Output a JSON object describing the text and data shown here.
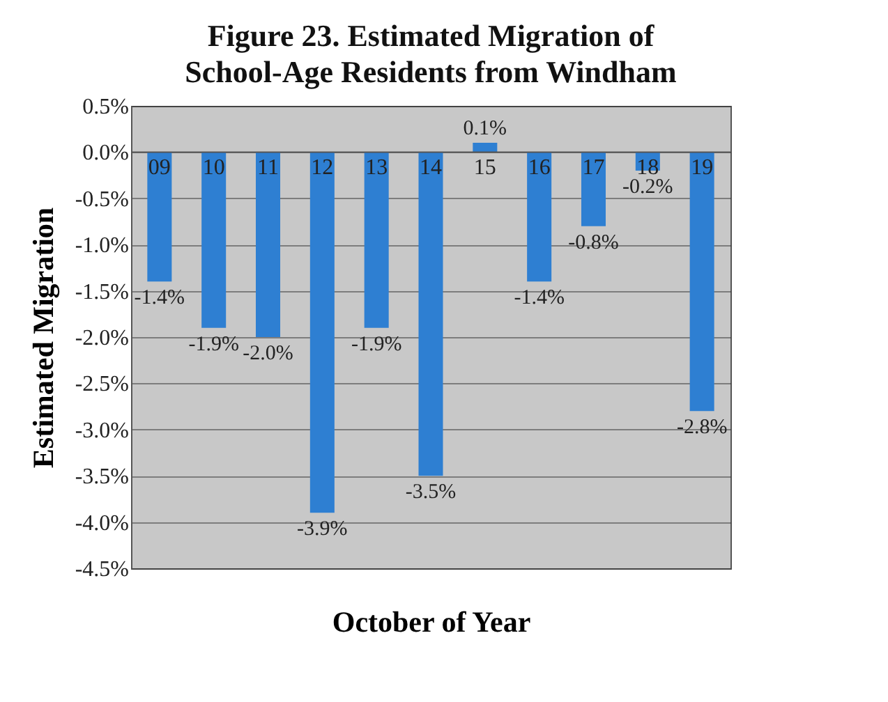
{
  "chart_data": {
    "type": "bar",
    "title": "Figure 23.  Estimated Migration of School-Age Residents from Windham",
    "xlabel": "October of Year",
    "ylabel": "Estimated Migration",
    "categories": [
      "09",
      "10",
      "11",
      "12",
      "13",
      "14",
      "15",
      "16",
      "17",
      "18",
      "19"
    ],
    "values": [
      -1.4,
      -1.9,
      -2.0,
      -3.9,
      -1.9,
      -3.5,
      0.1,
      -1.4,
      -0.8,
      -0.2,
      -2.8
    ],
    "value_labels": [
      "-1.4%",
      "-1.9%",
      "-2.0%",
      "-3.9%",
      "-1.9%",
      "-3.5%",
      "0.1%",
      "-1.4%",
      "-0.8%",
      "-0.2%",
      "-2.8%"
    ],
    "color": "#2e7fd2",
    "ylim": [
      -4.5,
      0.5
    ],
    "yticks": [
      {
        "value": 0.5,
        "label": "0.5%"
      },
      {
        "value": 0.0,
        "label": "0.0%"
      },
      {
        "value": -0.5,
        "label": "-0.5%"
      },
      {
        "value": -1.0,
        "label": "-1.0%"
      },
      {
        "value": -1.5,
        "label": "-1.5%"
      },
      {
        "value": -2.0,
        "label": "-2.0%"
      },
      {
        "value": -2.5,
        "label": "-2.5%"
      },
      {
        "value": -3.0,
        "label": "-3.0%"
      },
      {
        "value": -3.5,
        "label": "-3.5%"
      },
      {
        "value": -4.0,
        "label": "-4.0%"
      },
      {
        "value": -4.5,
        "label": "-4.5%"
      }
    ],
    "grid": "y"
  }
}
